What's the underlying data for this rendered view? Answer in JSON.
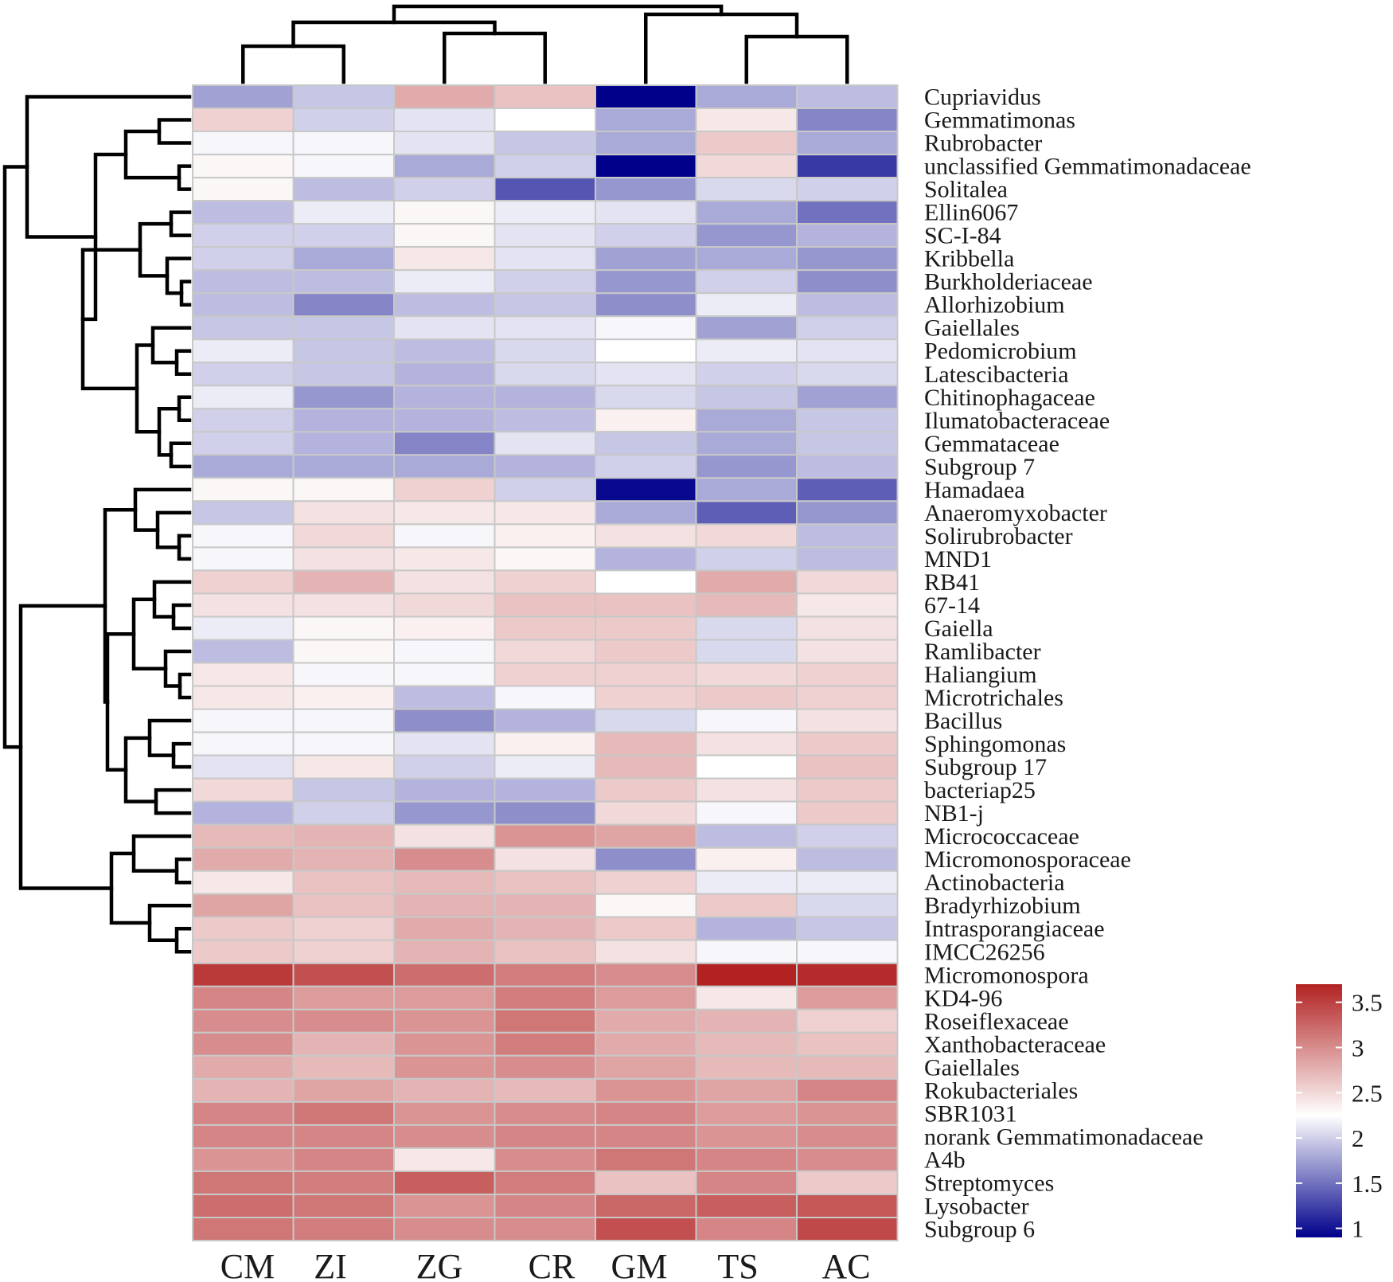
{
  "chart_data": {
    "type": "heatmap",
    "title": "",
    "columns": [
      "CM",
      "ZI",
      "ZG",
      "CR",
      "GM",
      "TS",
      "AC"
    ],
    "rows": [
      "Cupriavidus",
      "Gemmatimonas",
      "Rubrobacter",
      "unclassified Gemmatimonadaceae",
      "Solitalea",
      "Ellin6067",
      "SC-I-84",
      "Kribbella",
      "Burkholderiaceae",
      "Allorhizobium",
      "Gaiellales",
      "Pedomicrobium",
      "Latescibacteria",
      "Chitinophagaceae",
      "Ilumatobacteraceae",
      "Gemmataceae",
      "Subgroup 7",
      "Hamadaea",
      "Anaeromyxobacter",
      "Solirubrobacter",
      "MND1",
      "RB41",
      "67-14",
      "Gaiella",
      "Ramlibacter",
      "Haliangium",
      "Microtrichales",
      "Bacillus",
      "Sphingomonas",
      "Subgroup 17",
      "bacteriap25",
      "NB1-j",
      "Micrococcaceae",
      "Micromonosporaceae",
      "Actinobacteria",
      "Bradyrhizobium",
      "Intrasporangiaceae",
      "IMCC26256",
      "Micromonospora",
      "KD4-96",
      "Roseiflexaceae",
      "Xanthobacteraceae",
      "Gaiellales",
      "Rokubacteriales",
      "SBR1031",
      "norank Gemmatimonadaceae",
      "A4b",
      "Streptomyces",
      "Lysobacter",
      "Subgroup 6"
    ],
    "values": [
      [
        1.75,
        1.95,
        2.8,
        2.65,
        0.9,
        1.8,
        1.9
      ],
      [
        2.55,
        2.0,
        2.1,
        2.25,
        1.8,
        2.4,
        1.6
      ],
      [
        2.2,
        2.2,
        2.1,
        1.95,
        1.8,
        2.6,
        1.8
      ],
      [
        2.3,
        2.2,
        1.8,
        2.0,
        0.9,
        2.5,
        1.2
      ],
      [
        2.3,
        1.9,
        2.0,
        1.35,
        1.7,
        2.05,
        2.0
      ],
      [
        1.9,
        2.15,
        2.3,
        2.15,
        2.1,
        1.8,
        1.5
      ],
      [
        2.0,
        2.0,
        2.3,
        2.1,
        2.0,
        1.7,
        1.85
      ],
      [
        2.0,
        1.8,
        2.4,
        2.1,
        1.75,
        1.8,
        1.7
      ],
      [
        1.9,
        1.9,
        2.15,
        2.0,
        1.7,
        2.0,
        1.65
      ],
      [
        1.9,
        1.6,
        1.9,
        1.95,
        1.65,
        2.15,
        1.9
      ],
      [
        1.95,
        1.95,
        2.1,
        2.1,
        2.2,
        1.75,
        2.0
      ],
      [
        2.15,
        1.95,
        1.9,
        2.05,
        2.25,
        2.15,
        2.1
      ],
      [
        2.0,
        1.95,
        1.85,
        2.05,
        2.1,
        2.0,
        2.05
      ],
      [
        2.15,
        1.7,
        1.85,
        1.85,
        2.05,
        1.95,
        1.75
      ],
      [
        2.0,
        1.85,
        1.85,
        1.9,
        2.35,
        1.8,
        1.95
      ],
      [
        2.0,
        1.85,
        1.6,
        2.1,
        1.95,
        1.8,
        1.95
      ],
      [
        1.8,
        1.8,
        1.8,
        1.85,
        2.0,
        1.7,
        1.9
      ],
      [
        2.3,
        2.3,
        2.55,
        2.0,
        0.95,
        1.8,
        1.4
      ],
      [
        1.95,
        2.45,
        2.4,
        2.4,
        1.8,
        1.4,
        1.7
      ],
      [
        2.2,
        2.5,
        2.2,
        2.35,
        2.45,
        2.5,
        1.9
      ],
      [
        2.2,
        2.45,
        2.4,
        2.3,
        1.85,
        2.0,
        1.9
      ],
      [
        2.55,
        2.75,
        2.45,
        2.55,
        2.25,
        2.8,
        2.5
      ],
      [
        2.45,
        2.45,
        2.5,
        2.65,
        2.65,
        2.7,
        2.4
      ],
      [
        2.15,
        2.3,
        2.35,
        2.6,
        2.6,
        2.05,
        2.45
      ],
      [
        1.9,
        2.3,
        2.2,
        2.5,
        2.6,
        2.05,
        2.45
      ],
      [
        2.4,
        2.2,
        2.2,
        2.55,
        2.55,
        2.5,
        2.55
      ],
      [
        2.4,
        2.35,
        1.9,
        2.2,
        2.55,
        2.6,
        2.55
      ],
      [
        2.2,
        2.2,
        1.65,
        1.85,
        2.05,
        2.2,
        2.45
      ],
      [
        2.2,
        2.2,
        2.1,
        2.35,
        2.7,
        2.45,
        2.6
      ],
      [
        2.1,
        2.4,
        2.0,
        2.15,
        2.7,
        2.25,
        2.65
      ],
      [
        2.5,
        1.95,
        1.85,
        1.85,
        2.6,
        2.45,
        2.6
      ],
      [
        1.85,
        2.0,
        1.7,
        1.65,
        2.5,
        2.2,
        2.6
      ],
      [
        2.7,
        2.75,
        2.45,
        2.95,
        2.85,
        1.9,
        2.0
      ],
      [
        2.8,
        2.75,
        3.0,
        2.45,
        1.65,
        2.35,
        1.9
      ],
      [
        2.4,
        2.65,
        2.7,
        2.65,
        2.55,
        2.15,
        2.15
      ],
      [
        2.85,
        2.65,
        2.75,
        2.75,
        2.3,
        2.6,
        2.05
      ],
      [
        2.6,
        2.55,
        2.8,
        2.75,
        2.6,
        1.85,
        1.95
      ],
      [
        2.6,
        2.55,
        2.75,
        2.65,
        2.45,
        2.2,
        2.2
      ],
      [
        3.55,
        3.4,
        3.2,
        3.1,
        3.0,
        3.7,
        3.65
      ],
      [
        3.05,
        2.9,
        2.9,
        3.1,
        2.9,
        2.4,
        2.9
      ],
      [
        3.0,
        3.0,
        2.95,
        3.15,
        2.8,
        2.75,
        2.55
      ],
      [
        3.0,
        2.75,
        2.95,
        3.1,
        2.8,
        2.7,
        2.65
      ],
      [
        2.8,
        2.7,
        2.95,
        3.0,
        2.85,
        2.7,
        2.7
      ],
      [
        2.75,
        2.85,
        2.75,
        2.7,
        2.95,
        2.85,
        3.05
      ],
      [
        3.05,
        3.15,
        2.95,
        3.0,
        3.05,
        2.9,
        2.95
      ],
      [
        3.05,
        3.05,
        3.0,
        3.05,
        3.05,
        2.95,
        3.0
      ],
      [
        2.95,
        3.05,
        2.4,
        3.0,
        3.15,
        3.05,
        3.0
      ],
      [
        3.15,
        3.1,
        3.3,
        3.1,
        2.65,
        3.05,
        2.6
      ],
      [
        3.2,
        3.15,
        2.95,
        3.05,
        3.25,
        3.3,
        3.35
      ],
      [
        3.15,
        3.1,
        3.0,
        3.0,
        3.4,
        3.05,
        3.45
      ]
    ],
    "colorbar": {
      "ticks": [
        3.5,
        3,
        2.5,
        2,
        1.5,
        1
      ],
      "tick_labels": [
        "3.5",
        "3",
        "2.5",
        "2",
        "1.5",
        "1"
      ],
      "range": [
        0.9,
        3.7
      ],
      "low_color": "#00008b",
      "mid_color": "#ffffff",
      "high_color": "#b22222",
      "mid_value": 2.25
    },
    "legend_position": "bottom-right",
    "row_dendrogram": true,
    "column_dendrogram": true
  }
}
